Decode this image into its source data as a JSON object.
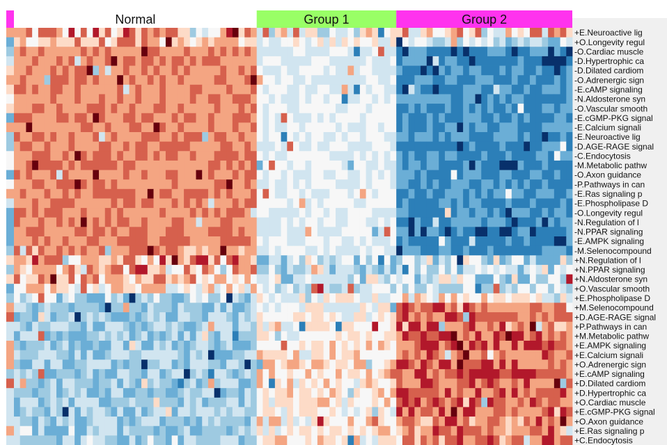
{
  "chart_data": {
    "type": "heatmap",
    "title": "",
    "xlabel": "",
    "ylabel": "",
    "columns_per_group": [
      40,
      23,
      29
    ],
    "groups": [
      {
        "name": "Normal",
        "color": "#ffffff"
      },
      {
        "name": "Group 1",
        "color": "#99ff66"
      },
      {
        "name": "Group 2",
        "color": "#ff33ee"
      }
    ],
    "left_annotation_color": "#ff33ee",
    "color_scale": {
      "low": "#08306b",
      "mid": "#f7f7f7",
      "high": "#67000d",
      "range": [
        -3,
        3
      ],
      "ramp": [
        "#08306b",
        "#2c7fb8",
        "#6baed6",
        "#9ecae1",
        "#d1e5f0",
        "#f7f7f7",
        "#fddbc7",
        "#f4a582",
        "#d6604d",
        "#b2182b",
        "#67000d"
      ]
    },
    "rows": [
      {
        "label": "+E.Neuroactive lig",
        "pattern": [
          1.0,
          0.2,
          0.5
        ],
        "noise": 1.6
      },
      {
        "label": "+O.Longevity regul",
        "pattern": [
          0.8,
          0.0,
          -0.8
        ],
        "noise": 0.9
      },
      {
        "label": "-O.Cardiac muscle",
        "pattern": [
          1.4,
          -0.3,
          -2.4
        ],
        "noise": 0.5
      },
      {
        "label": "-D.Hypertrophic ca",
        "pattern": [
          1.4,
          -0.3,
          -2.3
        ],
        "noise": 0.5
      },
      {
        "label": "-D.Dilated cardiom",
        "pattern": [
          1.4,
          -0.3,
          -2.3
        ],
        "noise": 0.5
      },
      {
        "label": "-O.Adrenergic sign",
        "pattern": [
          1.4,
          -0.4,
          -2.2
        ],
        "noise": 0.5
      },
      {
        "label": "-E.cAMP signaling",
        "pattern": [
          1.4,
          -0.3,
          -2.2
        ],
        "noise": 0.5
      },
      {
        "label": "-N.Aldosterone syn",
        "pattern": [
          1.4,
          -0.3,
          -2.1
        ],
        "noise": 0.5
      },
      {
        "label": "-O.Vascular smooth",
        "pattern": [
          1.4,
          -0.2,
          -2.1
        ],
        "noise": 0.5
      },
      {
        "label": "-E.cGMP-PKG signal",
        "pattern": [
          1.4,
          -0.3,
          -2.2
        ],
        "noise": 0.5
      },
      {
        "label": "-E.Calcium signali",
        "pattern": [
          1.4,
          -0.3,
          -2.2
        ],
        "noise": 0.5
      },
      {
        "label": "-E.Neuroactive lig",
        "pattern": [
          1.4,
          -0.2,
          -2.1
        ],
        "noise": 0.5
      },
      {
        "label": "-D.AGE-RAGE signal",
        "pattern": [
          1.4,
          -0.4,
          -2.3
        ],
        "noise": 0.5
      },
      {
        "label": "-C.Endocytosis",
        "pattern": [
          1.4,
          -0.3,
          -2.2
        ],
        "noise": 0.5
      },
      {
        "label": "-M.Metabolic pathw",
        "pattern": [
          1.4,
          -0.3,
          -2.4
        ],
        "noise": 0.5
      },
      {
        "label": "-O.Axon guidance",
        "pattern": [
          1.4,
          -0.3,
          -2.2
        ],
        "noise": 0.5
      },
      {
        "label": "-P.Pathways in can",
        "pattern": [
          1.4,
          -0.3,
          -2.2
        ],
        "noise": 0.5
      },
      {
        "label": "-E.Ras signaling p",
        "pattern": [
          1.4,
          -0.3,
          -2.1
        ],
        "noise": 0.5
      },
      {
        "label": "-E.Phospholipase D",
        "pattern": [
          1.4,
          -0.3,
          -2.2
        ],
        "noise": 0.5
      },
      {
        "label": "-O.Longevity regul",
        "pattern": [
          1.4,
          -0.3,
          -2.1
        ],
        "noise": 0.5
      },
      {
        "label": "-N.Regulation of l",
        "pattern": [
          1.4,
          -0.3,
          -2.2
        ],
        "noise": 0.5
      },
      {
        "label": "-N.PPAR signaling",
        "pattern": [
          1.4,
          -0.3,
          -2.3
        ],
        "noise": 0.5
      },
      {
        "label": "-E.AMPK signaling",
        "pattern": [
          1.4,
          -0.3,
          -2.3
        ],
        "noise": 0.5
      },
      {
        "label": "-M.Selenocompound",
        "pattern": [
          1.3,
          -0.3,
          -2.2
        ],
        "noise": 0.5
      },
      {
        "label": "+N.Regulation of l",
        "pattern": [
          1.1,
          -0.6,
          -0.8
        ],
        "noise": 1.3
      },
      {
        "label": "+N.PPAR signaling",
        "pattern": [
          1.0,
          -0.6,
          -0.8
        ],
        "noise": 1.2
      },
      {
        "label": "+N.Aldosterone syn",
        "pattern": [
          0.9,
          -0.6,
          -0.7
        ],
        "noise": 1.2
      },
      {
        "label": "+O.Vascular smooth",
        "pattern": [
          0.6,
          -0.6,
          -0.6
        ],
        "noise": 1.0
      },
      {
        "label": "+E.Phospholipase D",
        "pattern": [
          -0.8,
          -0.4,
          0.4
        ],
        "noise": 1.1
      },
      {
        "label": "+M.Selenocompound",
        "pattern": [
          -1.1,
          0.1,
          1.5
        ],
        "noise": 0.8
      },
      {
        "label": "+D.AGE-RAGE signal",
        "pattern": [
          -1.1,
          0.2,
          1.6
        ],
        "noise": 0.8
      },
      {
        "label": "+P.Pathways in can",
        "pattern": [
          -1.1,
          0.3,
          1.6
        ],
        "noise": 0.8
      },
      {
        "label": "+M.Metabolic pathw",
        "pattern": [
          -1.1,
          0.3,
          1.7
        ],
        "noise": 0.8
      },
      {
        "label": "+E.AMPK signaling",
        "pattern": [
          -1.1,
          0.4,
          1.7
        ],
        "noise": 0.8
      },
      {
        "label": "+E.Calcium signali",
        "pattern": [
          -1.1,
          0.4,
          1.7
        ],
        "noise": 0.8
      },
      {
        "label": "+O.Adrenergic sign",
        "pattern": [
          -1.1,
          0.5,
          1.8
        ],
        "noise": 0.8
      },
      {
        "label": "+E.cAMP signaling",
        "pattern": [
          -1.1,
          0.5,
          1.8
        ],
        "noise": 0.8
      },
      {
        "label": "+D.Dilated cardiom",
        "pattern": [
          -1.1,
          0.4,
          1.7
        ],
        "noise": 0.8
      },
      {
        "label": "+D.Hypertrophic ca",
        "pattern": [
          -1.1,
          0.4,
          1.7
        ],
        "noise": 0.8
      },
      {
        "label": "+O.Cardiac muscle",
        "pattern": [
          -1.1,
          0.4,
          1.6
        ],
        "noise": 0.8
      },
      {
        "label": "+E.cGMP-PKG signal",
        "pattern": [
          -1.1,
          0.3,
          1.6
        ],
        "noise": 0.8
      },
      {
        "label": "+O.Axon guidance",
        "pattern": [
          -1.1,
          0.3,
          1.5
        ],
        "noise": 0.8
      },
      {
        "label": "+E.Ras signaling p",
        "pattern": [
          -1.0,
          0.3,
          1.5
        ],
        "noise": 0.8
      },
      {
        "label": "+C.Endocytosis",
        "pattern": [
          -1.0,
          0.3,
          1.4
        ],
        "noise": 0.8
      }
    ]
  }
}
